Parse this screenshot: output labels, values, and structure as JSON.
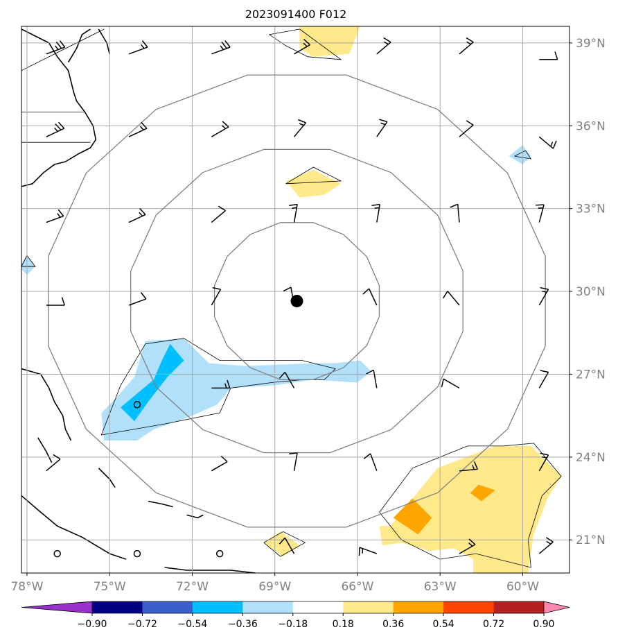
{
  "chart_data": {
    "type": "heatmap",
    "title": "2023091400 F012",
    "xlabel": "",
    "ylabel": "",
    "xlim": [
      -78.2,
      -58.3
    ],
    "ylim": [
      19.8,
      39.6
    ],
    "grid": true,
    "x_ticks": [
      {
        "value": -78,
        "label": "78°W"
      },
      {
        "value": -75,
        "label": "75°W"
      },
      {
        "value": -72,
        "label": "72°W"
      },
      {
        "value": -69,
        "label": "69°W"
      },
      {
        "value": -66,
        "label": "66°W"
      },
      {
        "value": -63,
        "label": "63°W"
      },
      {
        "value": -60,
        "label": "60°W"
      }
    ],
    "y_ticks": [
      {
        "value": 39,
        "label": "39°N"
      },
      {
        "value": 36,
        "label": "36°N"
      },
      {
        "value": 33,
        "label": "33°N"
      },
      {
        "value": 30,
        "label": "30°N"
      },
      {
        "value": 27,
        "label": "27°N"
      },
      {
        "value": 24,
        "label": "24°N"
      },
      {
        "value": 21,
        "label": "21°N"
      }
    ],
    "center": {
      "lon": -68.2,
      "lat": 29.65
    },
    "range_rings": [
      {
        "radius_x_deg": 3.05,
        "radius_y_deg": 2.9
      },
      {
        "radius_x_deg": 6.15,
        "radius_y_deg": 5.6
      },
      {
        "radius_x_deg": 9.2,
        "radius_y_deg": 8.35
      }
    ],
    "colorbar": {
      "ticks": [
        "−0.90",
        "−0.72",
        "−0.54",
        "−0.36",
        "−0.18",
        "0.18",
        "0.36",
        "0.54",
        "0.72",
        "0.90"
      ],
      "under_color": "#9932cc",
      "over_color": "#ff88b0",
      "bin_colors": [
        "#000080",
        "#3a5fcd",
        "#00bfff",
        "#b0e0fa",
        "#ffffff",
        "#ffe98a",
        "#ffa500",
        "#ff4500",
        "#b22222"
      ]
    },
    "shaded_regions": [
      {
        "value_bin": "0.18 to 0.36",
        "color": "#ffe98a",
        "polygon": [
          [
            -68.1,
            39.6
          ],
          [
            -65.9,
            39.6
          ],
          [
            -66.3,
            38.6
          ],
          [
            -67.6,
            38.5
          ],
          [
            -68.1,
            38.8
          ]
        ]
      },
      {
        "value_bin": "0.18 to 0.36",
        "color": "#ffe98a",
        "polygon": [
          [
            -68.6,
            34.0
          ],
          [
            -67.6,
            34.4
          ],
          [
            -66.6,
            33.9
          ],
          [
            -67.2,
            33.5
          ],
          [
            -68.1,
            33.4
          ]
        ]
      },
      {
        "value_bin": "-0.36 to -0.18",
        "color": "#b0e0fa",
        "polygon": [
          [
            -73.7,
            28.2
          ],
          [
            -72.3,
            28.3
          ],
          [
            -71.4,
            27.4
          ],
          [
            -70.1,
            27.3
          ],
          [
            -67.4,
            27.4
          ],
          [
            -66.8,
            27.4
          ],
          [
            -65.9,
            27.5
          ],
          [
            -65.5,
            27.1
          ],
          [
            -66.0,
            26.7
          ],
          [
            -67.6,
            26.8
          ],
          [
            -69.0,
            26.6
          ],
          [
            -70.6,
            26.5
          ],
          [
            -71.1,
            25.9
          ],
          [
            -72.0,
            25.5
          ],
          [
            -73.4,
            25.0
          ],
          [
            -74.0,
            24.6
          ],
          [
            -75.2,
            24.6
          ],
          [
            -75.3,
            25.6
          ],
          [
            -74.8,
            26.1
          ],
          [
            -74.1,
            26.9
          ]
        ]
      },
      {
        "value_bin": "-0.54 to -0.36",
        "color": "#00bfff",
        "polygon": [
          [
            -72.8,
            28.1
          ],
          [
            -72.3,
            27.5
          ],
          [
            -72.9,
            26.9
          ],
          [
            -73.6,
            26.0
          ],
          [
            -74.1,
            25.3
          ],
          [
            -74.6,
            25.8
          ],
          [
            -73.4,
            26.8
          ],
          [
            -73.1,
            27.5
          ]
        ]
      },
      {
        "value_bin": "0.18 to 0.36",
        "color": "#ffe98a",
        "polygon": [
          [
            -64.8,
            21.5
          ],
          [
            -63.1,
            23.6
          ],
          [
            -61.0,
            24.4
          ],
          [
            -59.7,
            24.4
          ],
          [
            -58.6,
            23.3
          ],
          [
            -59.1,
            22.5
          ],
          [
            -59.6,
            21.2
          ],
          [
            -59.8,
            19.8
          ],
          [
            -61.8,
            19.8
          ],
          [
            -61.8,
            20.3
          ],
          [
            -62.5,
            20.7
          ],
          [
            -63.4,
            20.6
          ],
          [
            -64.4,
            20.9
          ],
          [
            -65.1,
            20.8
          ],
          [
            -65.2,
            21.5
          ]
        ]
      },
      {
        "value_bin": "0.36 to 0.54",
        "color": "#ffa500",
        "polygon": [
          [
            -64.0,
            22.5
          ],
          [
            -63.3,
            21.8
          ],
          [
            -63.8,
            21.2
          ],
          [
            -64.7,
            21.8
          ]
        ]
      },
      {
        "value_bin": "0.36 to 0.54",
        "color": "#ffa500",
        "polygon": [
          [
            -61.6,
            23.0
          ],
          [
            -61.0,
            22.8
          ],
          [
            -61.5,
            22.4
          ],
          [
            -61.9,
            22.7
          ]
        ]
      },
      {
        "value_bin": "0.18 to 0.36",
        "color": "#ffe98a",
        "polygon": [
          [
            -68.8,
            21.3
          ],
          [
            -68.1,
            20.8
          ],
          [
            -68.7,
            20.4
          ],
          [
            -69.4,
            20.9
          ]
        ]
      },
      {
        "value_bin": "-0.36 to -0.18",
        "color": "#b0e0fa",
        "polygon": [
          [
            -60.0,
            35.3
          ],
          [
            -59.7,
            34.9
          ],
          [
            -60.0,
            34.6
          ],
          [
            -60.5,
            34.9
          ]
        ]
      },
      {
        "value_bin": "-0.36 to -0.18",
        "color": "#b0e0fa",
        "polygon": [
          [
            -78.0,
            31.3
          ],
          [
            -77.7,
            30.9
          ],
          [
            -78.0,
            30.6
          ],
          [
            -78.3,
            30.9
          ]
        ]
      }
    ],
    "contour_lines": [
      [
        [
          -68.1,
          39.5
        ],
        [
          -66.6,
          38.4
        ],
        [
          -67.8,
          38.5
        ],
        [
          -68.6,
          38.9
        ],
        [
          -69.2,
          39.3
        ],
        [
          -68.1,
          39.5
        ]
      ],
      [
        [
          -72.3,
          28.3
        ],
        [
          -71.0,
          27.5
        ],
        [
          -68.0,
          27.5
        ],
        [
          -66.8,
          27.2
        ],
        [
          -67.2,
          26.8
        ],
        [
          -68.0,
          26.8
        ],
        [
          -69.1,
          26.7
        ],
        [
          -70.6,
          26.5
        ],
        [
          -71.0,
          25.6
        ],
        [
          -73.0,
          25.2
        ],
        [
          -75.3,
          24.8
        ],
        [
          -74.6,
          26.6
        ],
        [
          -73.7,
          28.1
        ],
        [
          -72.3,
          28.3
        ]
      ],
      [
        [
          -68.6,
          33.9
        ],
        [
          -67.6,
          34.5
        ],
        [
          -66.6,
          34.0
        ],
        [
          -68.6,
          33.9
        ]
      ],
      [
        [
          -65.2,
          22.0
        ],
        [
          -64.0,
          23.6
        ],
        [
          -62.0,
          24.4
        ],
        [
          -60.7,
          24.4
        ],
        [
          -59.6,
          24.5
        ],
        [
          -58.6,
          23.3
        ],
        [
          -59.3,
          22.6
        ],
        [
          -59.8,
          21.0
        ],
        [
          -59.7,
          20.0
        ],
        [
          -61.7,
          20.5
        ],
        [
          -63.0,
          20.3
        ],
        [
          -64.4,
          21.0
        ],
        [
          -65.2,
          22.0
        ]
      ],
      [
        [
          -69.4,
          20.9
        ],
        [
          -68.7,
          21.3
        ],
        [
          -67.9,
          20.9
        ],
        [
          -68.8,
          20.4
        ],
        [
          -69.4,
          20.9
        ]
      ],
      [
        [
          -60.3,
          34.9
        ],
        [
          -59.9,
          35.1
        ],
        [
          -59.7,
          34.8
        ],
        [
          -60.3,
          34.9
        ]
      ],
      [
        [
          -78.0,
          31.3
        ],
        [
          -77.7,
          30.9
        ],
        [
          -78.2,
          30.9
        ],
        [
          -78.0,
          31.3
        ]
      ]
    ],
    "wind_barbs": [
      {
        "lon": -77.3,
        "lat": 38.6,
        "angle_deg": -20,
        "length": 1.3,
        "barbs": 3
      },
      {
        "lon": -74.3,
        "lat": 38.6,
        "angle_deg": -20,
        "length": 1.3,
        "barbs": 2
      },
      {
        "lon": -71.3,
        "lat": 38.6,
        "angle_deg": -20,
        "length": 1.3,
        "barbs": 3
      },
      {
        "lon": -68.3,
        "lat": 38.6,
        "angle_deg": -30,
        "length": 1.2,
        "barbs": 2
      },
      {
        "lon": -65.3,
        "lat": 38.6,
        "angle_deg": -40,
        "length": 1.2,
        "barbs": 2
      },
      {
        "lon": -62.3,
        "lat": 38.6,
        "angle_deg": -40,
        "length": 1.2,
        "barbs": 2
      },
      {
        "lon": -59.4,
        "lat": 38.4,
        "angle_deg": 0,
        "length": 1.2,
        "barbs": 1
      },
      {
        "lon": -77.3,
        "lat": 35.6,
        "angle_deg": -25,
        "length": 1.3,
        "barbs": 3
      },
      {
        "lon": -74.3,
        "lat": 35.6,
        "angle_deg": -25,
        "length": 1.3,
        "barbs": 2
      },
      {
        "lon": -71.3,
        "lat": 35.6,
        "angle_deg": -30,
        "length": 1.3,
        "barbs": 2
      },
      {
        "lon": -68.3,
        "lat": 35.6,
        "angle_deg": -50,
        "length": 1.2,
        "barbs": 2
      },
      {
        "lon": -65.3,
        "lat": 35.6,
        "angle_deg": -55,
        "length": 1.2,
        "barbs": 2
      },
      {
        "lon": -62.3,
        "lat": 35.6,
        "angle_deg": -40,
        "length": 1.2,
        "barbs": 1
      },
      {
        "lon": -59.4,
        "lat": 35.6,
        "angle_deg": 40,
        "length": 1.2,
        "barbs": 2
      },
      {
        "lon": -77.3,
        "lat": 32.5,
        "angle_deg": -20,
        "length": 1.2,
        "barbs": 2
      },
      {
        "lon": -74.3,
        "lat": 32.5,
        "angle_deg": -25,
        "length": 1.2,
        "barbs": 2
      },
      {
        "lon": -71.3,
        "lat": 32.5,
        "angle_deg": -40,
        "length": 1.2,
        "barbs": 1
      },
      {
        "lon": -68.3,
        "lat": 32.5,
        "angle_deg": -80,
        "length": 1.2,
        "barbs": 2
      },
      {
        "lon": -65.3,
        "lat": 32.5,
        "angle_deg": -80,
        "length": 1.2,
        "barbs": 2
      },
      {
        "lon": -62.3,
        "lat": 32.5,
        "angle_deg": -95,
        "length": 1.2,
        "barbs": 1
      },
      {
        "lon": -59.4,
        "lat": 32.5,
        "angle_deg": -75,
        "length": 1.2,
        "barbs": 2
      },
      {
        "lon": -77.3,
        "lat": 29.5,
        "angle_deg": 0,
        "length": 1.2,
        "barbs": 1
      },
      {
        "lon": -74.3,
        "lat": 29.5,
        "angle_deg": -20,
        "length": 1.2,
        "barbs": 1
      },
      {
        "lon": -71.3,
        "lat": 29.5,
        "angle_deg": -60,
        "length": 1.2,
        "barbs": 1
      },
      {
        "lon": -68.3,
        "lat": 29.5,
        "angle_deg": -100,
        "length": 1.2,
        "barbs": 1
      },
      {
        "lon": -65.3,
        "lat": 29.5,
        "angle_deg": -115,
        "length": 1.2,
        "barbs": 1
      },
      {
        "lon": -62.3,
        "lat": 29.5,
        "angle_deg": -130,
        "length": 1.2,
        "barbs": 1
      },
      {
        "lon": -59.4,
        "lat": 29.5,
        "angle_deg": -60,
        "length": 1.2,
        "barbs": 2
      },
      {
        "lon": -71.3,
        "lat": 26.5,
        "angle_deg": 0,
        "length": 1.2,
        "barbs": 2
      },
      {
        "lon": -68.3,
        "lat": 26.5,
        "angle_deg": -120,
        "length": 1.2,
        "barbs": 1
      },
      {
        "lon": -65.3,
        "lat": 26.5,
        "angle_deg": -100,
        "length": 1.2,
        "barbs": 1
      },
      {
        "lon": -62.3,
        "lat": 26.5,
        "angle_deg": -150,
        "length": 1.2,
        "barbs": 1
      },
      {
        "lon": -59.4,
        "lat": 26.5,
        "angle_deg": -60,
        "length": 1.2,
        "barbs": 1
      },
      {
        "lon": -77.3,
        "lat": 23.5,
        "angle_deg": -40,
        "length": 1.2,
        "barbs": 1
      },
      {
        "lon": -71.3,
        "lat": 23.5,
        "angle_deg": -30,
        "length": 1.2,
        "barbs": 1
      },
      {
        "lon": -68.3,
        "lat": 23.5,
        "angle_deg": -80,
        "length": 1.2,
        "barbs": 1
      },
      {
        "lon": -65.3,
        "lat": 23.5,
        "angle_deg": -110,
        "length": 1.2,
        "barbs": 1
      },
      {
        "lon": -62.3,
        "lat": 23.5,
        "angle_deg": -5,
        "length": 1.2,
        "barbs": 2
      },
      {
        "lon": -59.4,
        "lat": 23.5,
        "angle_deg": -60,
        "length": 1.2,
        "barbs": 2
      },
      {
        "lon": -68.3,
        "lat": 20.5,
        "angle_deg": -120,
        "length": 1.2,
        "barbs": 1
      },
      {
        "lon": -65.3,
        "lat": 20.5,
        "angle_deg": -160,
        "length": 1.2,
        "barbs": 2
      },
      {
        "lon": -62.3,
        "lat": 20.5,
        "angle_deg": -30,
        "length": 1.2,
        "barbs": 2
      },
      {
        "lon": -59.4,
        "lat": 20.5,
        "angle_deg": -40,
        "length": 1.2,
        "barbs": 2
      }
    ],
    "coastlines": [
      [
        [
          -78.2,
          39.5
        ],
        [
          -77.2,
          39.0
        ],
        [
          -76.9,
          38.5
        ],
        [
          -76.5,
          38.0
        ],
        [
          -76.3,
          37.2
        ],
        [
          -76.2,
          36.9
        ],
        [
          -75.9,
          36.5
        ],
        [
          -75.6,
          36.0
        ],
        [
          -75.5,
          35.5
        ],
        [
          -75.7,
          35.2
        ],
        [
          -76.1,
          35.0
        ],
        [
          -76.6,
          34.7
        ],
        [
          -77.0,
          34.6
        ],
        [
          -77.4,
          34.3
        ],
        [
          -77.8,
          33.9
        ],
        [
          -78.2,
          33.8
        ]
      ],
      [
        [
          -76.5,
          38.3
        ],
        [
          -76.2,
          38.8
        ],
        [
          -76.0,
          39.3
        ],
        [
          -75.7,
          39.5
        ]
      ],
      [
        [
          -75.4,
          39.5
        ],
        [
          -75.1,
          39.0
        ],
        [
          -75.0,
          38.6
        ]
      ],
      [
        [
          -78.2,
          27.2
        ],
        [
          -77.5,
          27.0
        ],
        [
          -77.2,
          26.5
        ],
        [
          -77.0,
          26.0
        ],
        [
          -76.7,
          25.5
        ],
        [
          -76.6,
          25.0
        ],
        [
          -76.4,
          24.6
        ]
      ],
      [
        [
          -77.6,
          24.7
        ],
        [
          -77.3,
          24.2
        ],
        [
          -77.1,
          23.8
        ]
      ],
      [
        [
          -75.4,
          23.6
        ],
        [
          -75.0,
          23.2
        ],
        [
          -74.8,
          22.9
        ]
      ],
      [
        [
          -73.6,
          22.4
        ],
        [
          -73.1,
          22.3
        ],
        [
          -72.7,
          22.2
        ]
      ],
      [
        [
          -72.2,
          21.9
        ],
        [
          -71.8,
          21.8
        ],
        [
          -71.6,
          21.9
        ]
      ],
      [
        [
          -78.2,
          22.6
        ],
        [
          -77.5,
          22.0
        ],
        [
          -76.9,
          21.5
        ],
        [
          -76.0,
          21.1
        ],
        [
          -75.5,
          20.8
        ],
        [
          -75.0,
          20.5
        ],
        [
          -74.4,
          20.3
        ]
      ],
      [
        [
          -73.0,
          20.0
        ],
        [
          -72.2,
          19.9
        ],
        [
          -71.5,
          19.9
        ],
        [
          -70.6,
          19.9
        ],
        [
          -69.7,
          19.8
        ]
      ]
    ],
    "state_borders": [
      [
        [
          -78.2,
          35.4
        ],
        [
          -75.7,
          35.4
        ]
      ],
      [
        [
          -78.2,
          36.5
        ],
        [
          -75.9,
          36.5
        ]
      ],
      [
        [
          -78.2,
          38.0
        ],
        [
          -75.2,
          39.5
        ]
      ]
    ],
    "small_circles": [
      {
        "lon": -74.0,
        "lat": 25.9
      },
      {
        "lon": -76.9,
        "lat": 20.5
      },
      {
        "lon": -71.0,
        "lat": 20.5
      },
      {
        "lon": -74.0,
        "lat": 20.5
      }
    ]
  }
}
